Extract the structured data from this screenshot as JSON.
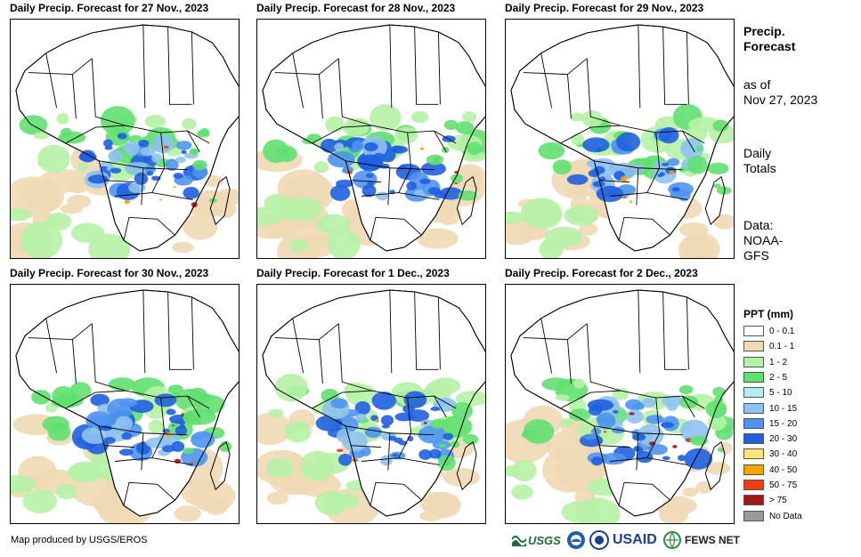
{
  "panels": [
    {
      "title": "Daily Precip. Forecast for 27 Nov., 2023"
    },
    {
      "title": "Daily Precip. Forecast for 28 Nov., 2023"
    },
    {
      "title": "Daily Precip. Forecast for 29 Nov., 2023"
    },
    {
      "title": "Daily Precip. Forecast for 30 Nov., 2023"
    },
    {
      "title": "Daily Precip. Forecast for 1 Dec., 2023"
    },
    {
      "title": "Daily Precip. Forecast for 2 Dec., 2023"
    }
  ],
  "side": {
    "title_line1": "Precip.",
    "title_line2": "Forecast",
    "asof_line1": "as of",
    "asof_line2": "Nov 27, 2023",
    "totals_line1": "Daily",
    "totals_line2": "Totals",
    "data_line1": "Data:",
    "data_line2": "NOAA-",
    "data_line3": "GFS"
  },
  "legend": {
    "title": "PPT (mm)",
    "items": [
      {
        "label": "0 - 0.1",
        "color": "#ffffff"
      },
      {
        "label": "0.1 - 1",
        "color": "#f0d9b5"
      },
      {
        "label": "1 - 2",
        "color": "#b6f2a6"
      },
      {
        "label": "2 - 5",
        "color": "#60e070"
      },
      {
        "label": "5 - 10",
        "color": "#b4eef2"
      },
      {
        "label": "10 - 15",
        "color": "#8ec2f0"
      },
      {
        "label": "15 - 20",
        "color": "#4f94f0"
      },
      {
        "label": "20 - 30",
        "color": "#1f5fe0"
      },
      {
        "label": "30 - 40",
        "color": "#ffe37a"
      },
      {
        "label": "40 - 50",
        "color": "#f5a300"
      },
      {
        "label": "50 - 75",
        "color": "#f03c10"
      },
      {
        "label": "> 75",
        "color": "#a01818"
      },
      {
        "label": "No Data",
        "color": "#9a9a9a"
      }
    ]
  },
  "footer": {
    "credit": "Map produced by USGS/EROS",
    "logos": {
      "usgs": "USGS",
      "usaid": "USAID",
      "fews": "FEWS NET"
    }
  }
}
